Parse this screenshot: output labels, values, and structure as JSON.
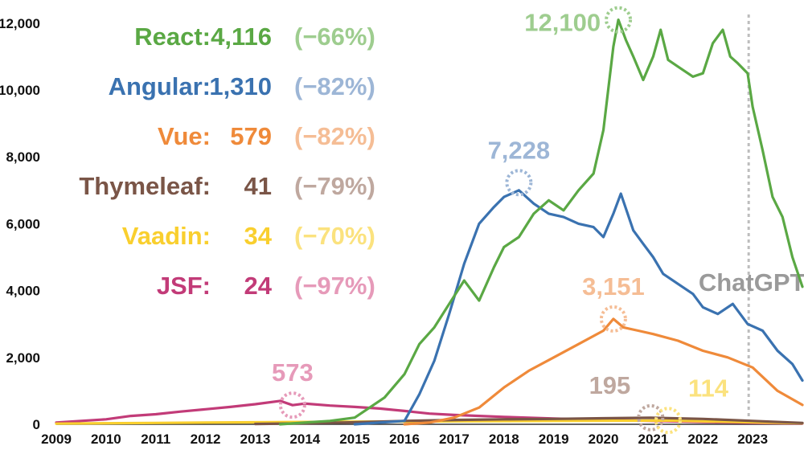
{
  "chart_data": {
    "type": "line",
    "title": "",
    "xlabel": "",
    "ylabel": "",
    "ylim": [
      0,
      12500
    ],
    "xlim": [
      2009,
      2024
    ],
    "grid": false,
    "x_ticks": [
      "2009",
      "2010",
      "2011",
      "2012",
      "2013",
      "2014",
      "2015",
      "2016",
      "2017",
      "2018",
      "2019",
      "2020",
      "2021",
      "2022",
      "2023"
    ],
    "y_ticks": [
      "0",
      "2,000",
      "4,000",
      "6,000",
      "8,000",
      "10,000",
      "12,000"
    ],
    "legend": [
      {
        "name": "React:",
        "value": "4,116",
        "change": "(−66%)",
        "color": "#5aa844",
        "light": "#9ecd8f"
      },
      {
        "name": "Angular:",
        "value": "1,310",
        "change": "(−82%)",
        "color": "#3a72b0",
        "light": "#9db6d6"
      },
      {
        "name": "Vue:",
        "value": "579",
        "change": "(−82%)",
        "color": "#ef8a3a",
        "light": "#f5bd95"
      },
      {
        "name": "Thymeleaf:",
        "value": "41",
        "change": "(−79%)",
        "color": "#7a5547",
        "light": "#bfa89f"
      },
      {
        "name": "Vaadin:",
        "value": "34",
        "change": "(−70%)",
        "color": "#f9cf2e",
        "light": "#fbe27e"
      },
      {
        "name": "JSF:",
        "value": "24",
        "change": "(−97%)",
        "color": "#c23b78",
        "light": "#e69ab9"
      }
    ],
    "annotations": [
      {
        "text": "12,100",
        "x": 2020.3,
        "y": 12100,
        "color": "#9ecd8f",
        "dx": -20,
        "dy": 18
      },
      {
        "text": "7,228",
        "x": 2018.3,
        "y": 7228,
        "color": "#9db6d6",
        "dx": 0,
        "dy": -30
      },
      {
        "text": "3,151",
        "x": 2020.2,
        "y": 3151,
        "color": "#f5bd95",
        "dx": 0,
        "dy": -30
      },
      {
        "text": "573",
        "x": 2013.75,
        "y": 573,
        "color": "#e69ab9",
        "dx": 0,
        "dy": -30
      },
      {
        "text": "195",
        "x": 2020.95,
        "y": 195,
        "color": "#bfa89f",
        "dx": -25,
        "dy": -30
      },
      {
        "text": "114",
        "x": 2021.3,
        "y": 114,
        "color": "#fbe27e",
        "dx": 25,
        "dy": -30
      }
    ],
    "event": {
      "label": "ChatGPT",
      "x": 2022.92,
      "color": "#9a9a9a"
    },
    "series": [
      {
        "name": "React",
        "color": "#5aa844",
        "x": [
          2013.5,
          2014,
          2014.5,
          2015,
          2015.3,
          2015.6,
          2016,
          2016.3,
          2016.6,
          2016.9,
          2017.2,
          2017.5,
          2017.8,
          2018,
          2018.3,
          2018.6,
          2018.9,
          2019.2,
          2019.5,
          2019.8,
          2020,
          2020.2,
          2020.3,
          2020.45,
          2020.6,
          2020.8,
          2021,
          2021.15,
          2021.3,
          2021.5,
          2021.8,
          2022,
          2022.2,
          2022.4,
          2022.55,
          2022.7,
          2022.9,
          2023,
          2023.2,
          2023.4,
          2023.6,
          2023.8,
          2024
        ],
        "y": [
          0,
          50,
          100,
          200,
          500,
          800,
          1500,
          2400,
          2900,
          3600,
          4300,
          3700,
          4700,
          5300,
          5600,
          6300,
          6700,
          6400,
          7000,
          7500,
          8800,
          11300,
          12100,
          11500,
          11000,
          10300,
          11000,
          11800,
          10900,
          10700,
          10400,
          10500,
          11400,
          11800,
          11000,
          10800,
          10500,
          9500,
          8200,
          6800,
          6200,
          5000,
          4116
        ]
      },
      {
        "name": "Angular",
        "color": "#3a72b0",
        "x": [
          2015,
          2015.5,
          2016,
          2016.3,
          2016.6,
          2016.9,
          2017.2,
          2017.5,
          2017.8,
          2018,
          2018.3,
          2018.6,
          2018.9,
          2019.2,
          2019.5,
          2019.8,
          2020,
          2020.2,
          2020.35,
          2020.6,
          2020.8,
          2021,
          2021.2,
          2021.5,
          2021.8,
          2022,
          2022.3,
          2022.6,
          2022.9,
          2023.2,
          2023.5,
          2023.8,
          2024
        ],
        "y": [
          0,
          50,
          100,
          900,
          1900,
          3300,
          4800,
          6000,
          6500,
          6800,
          7000,
          6600,
          6300,
          6200,
          6000,
          5900,
          5600,
          6300,
          6900,
          5800,
          5400,
          5000,
          4500,
          4200,
          3900,
          3500,
          3300,
          3600,
          3000,
          2800,
          2200,
          1800,
          1310
        ]
      },
      {
        "name": "Vue",
        "color": "#ef8a3a",
        "x": [
          2016,
          2016.5,
          2017,
          2017.5,
          2018,
          2018.5,
          2019,
          2019.5,
          2020,
          2020.2,
          2020.4,
          2020.7,
          2021,
          2021.5,
          2022,
          2022.5,
          2023,
          2023.5,
          2024
        ],
        "y": [
          0,
          50,
          200,
          500,
          1100,
          1600,
          2000,
          2400,
          2800,
          3151,
          2900,
          2800,
          2700,
          2500,
          2200,
          2000,
          1700,
          1000,
          579
        ]
      },
      {
        "name": "Thymeleaf",
        "color": "#7a5547",
        "x": [
          2013,
          2014,
          2015,
          2016,
          2017,
          2018,
          2019,
          2020,
          2020.95,
          2022,
          2023,
          2024
        ],
        "y": [
          10,
          30,
          60,
          100,
          130,
          150,
          160,
          180,
          195,
          160,
          100,
          41
        ]
      },
      {
        "name": "Vaadin",
        "color": "#f9cf2e",
        "x": [
          2009,
          2011,
          2013,
          2015,
          2017,
          2019,
          2021.3,
          2022,
          2023,
          2024
        ],
        "y": [
          20,
          40,
          60,
          80,
          90,
          100,
          114,
          90,
          60,
          34
        ]
      },
      {
        "name": "JSF",
        "color": "#c23b78",
        "x": [
          2009,
          2009.5,
          2010,
          2010.5,
          2011,
          2011.5,
          2012,
          2012.5,
          2013,
          2013.5,
          2013.75,
          2014,
          2014.5,
          2015,
          2015.5,
          2016,
          2016.5,
          2017,
          2018,
          2019,
          2020,
          2021,
          2022,
          2023,
          2024
        ],
        "y": [
          50,
          100,
          150,
          250,
          300,
          380,
          450,
          520,
          600,
          700,
          573,
          620,
          560,
          520,
          470,
          400,
          320,
          280,
          220,
          170,
          130,
          100,
          70,
          40,
          24
        ]
      }
    ]
  }
}
